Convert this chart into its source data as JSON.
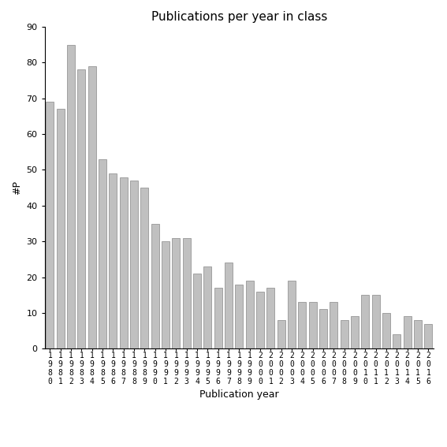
{
  "title": "Publications per year in class",
  "xlabel": "Publication year",
  "ylabel": "#P",
  "ylim": [
    0,
    90
  ],
  "yticks": [
    0,
    10,
    20,
    30,
    40,
    50,
    60,
    70,
    80,
    90
  ],
  "years": [
    "1980",
    "1981",
    "1982",
    "1983",
    "1984",
    "1985",
    "1986",
    "1987",
    "1988",
    "1989",
    "1990",
    "1991",
    "1992",
    "1993",
    "1994",
    "1995",
    "1996",
    "1997",
    "1998",
    "1999",
    "2000",
    "2001",
    "2002",
    "2003",
    "2004",
    "2005",
    "2006",
    "2007",
    "2008",
    "2009",
    "2010",
    "2011",
    "2012",
    "2013",
    "2014",
    "2015",
    "2016"
  ],
  "values": [
    69,
    67,
    85,
    78,
    79,
    53,
    49,
    48,
    47,
    45,
    35,
    30,
    31,
    31,
    21,
    23,
    17,
    24,
    18,
    19,
    16,
    17,
    8,
    19,
    13,
    13,
    11,
    13,
    8,
    9,
    15,
    15,
    10,
    4,
    9,
    8,
    7
  ],
  "bar_color": "#c0c0c0",
  "bar_edge_color": "#888888",
  "background_color": "#ffffff",
  "title_fontsize": 11,
  "label_fontsize": 9,
  "tick_label_fontsize": 7,
  "ytick_fontsize": 8
}
